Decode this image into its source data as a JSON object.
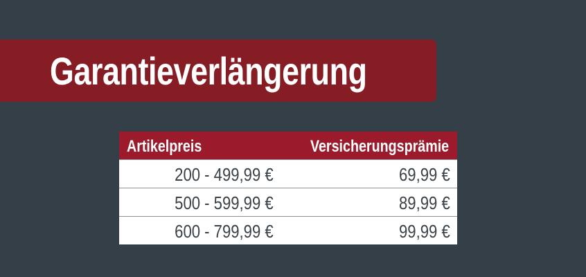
{
  "title": "Garantieverlängerung",
  "table": {
    "headers": [
      "Artikelpreis",
      "Versicherungsprämie"
    ],
    "rows": [
      [
        "200 - 499,99 €",
        "69,99 €"
      ],
      [
        "500 - 599,99 €",
        "89,99 €"
      ],
      [
        "600 - 799,99 €",
        "99,99 €"
      ]
    ]
  },
  "colors": {
    "background": "#343f47",
    "banner": "#861c24",
    "table_header": "#9b1b2c"
  }
}
